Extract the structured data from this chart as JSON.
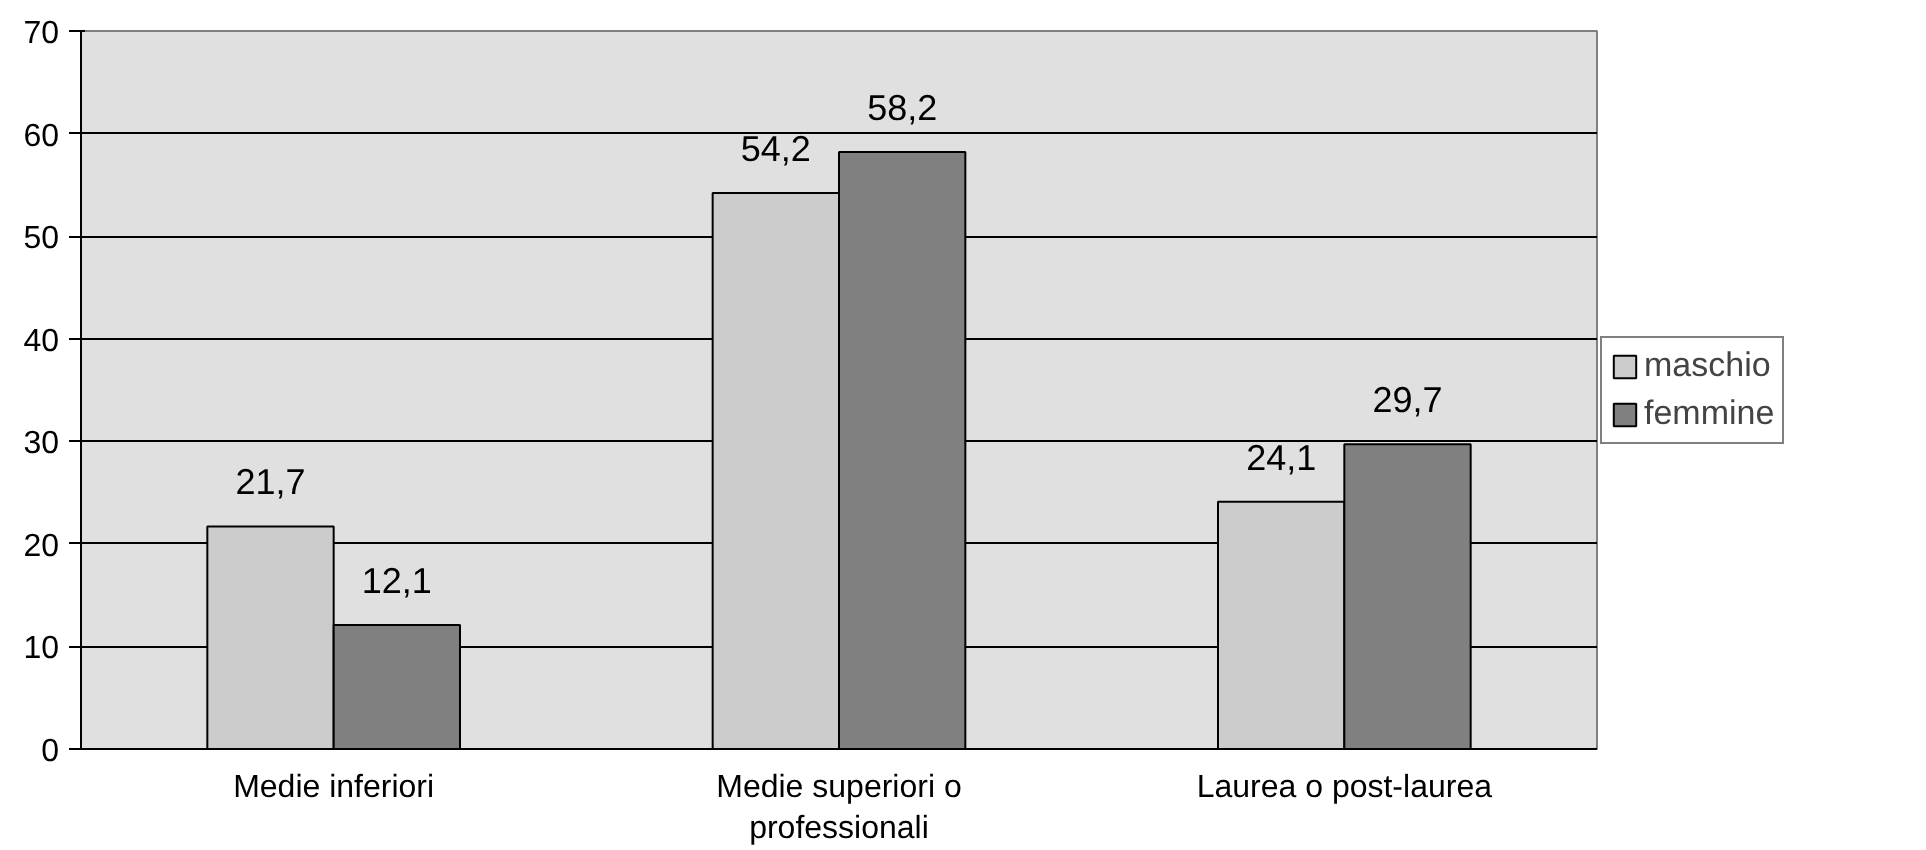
{
  "chart_data": {
    "type": "bar",
    "categories": [
      "Medie inferiori",
      "Medie superiori o professionali",
      "Laurea o post-laurea"
    ],
    "series": [
      {
        "name": "maschio",
        "color": "#cccccc",
        "values": [
          21.7,
          54.2,
          24.1
        ],
        "value_labels": [
          "21,7",
          "54,2",
          "24,1"
        ]
      },
      {
        "name": "femmine",
        "color": "#808080",
        "values": [
          12.1,
          58.2,
          29.7
        ],
        "value_labels": [
          "12,1",
          "58,2",
          "29,7"
        ]
      }
    ],
    "ylim": [
      0,
      70
    ],
    "yticks": [
      0,
      10,
      20,
      30,
      40,
      50,
      60,
      70
    ],
    "grid": "y",
    "legend": "right"
  }
}
